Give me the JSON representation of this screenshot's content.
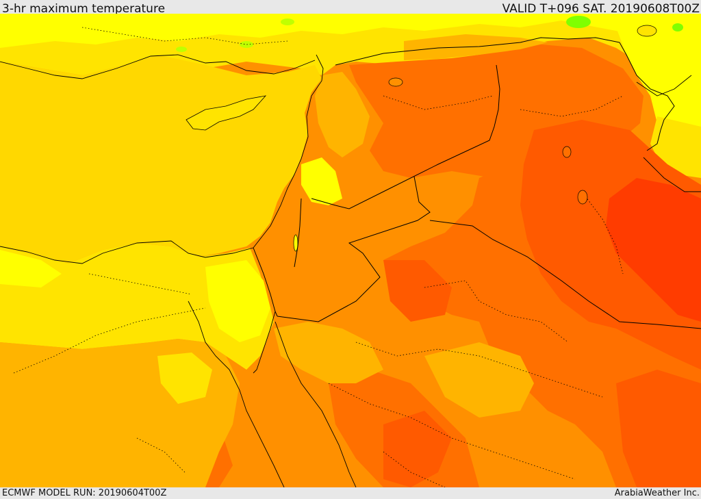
{
  "header": {
    "title": "3-hr maximum temperature",
    "valid": "VALID T+096 SAT. 20190608T00Z"
  },
  "footer": {
    "model_run": "ECMWF MODEL RUN: 20190604T00Z",
    "credit": "ArabiaWeather Inc."
  },
  "colors": {
    "sea": "#ffd800",
    "warm_yellow": "#ffe400",
    "pale_yellow": "#ffff00",
    "light_orange": "#ffb400",
    "orange": "#ff9000",
    "deep_orange": "#ff7000",
    "red_orange": "#ff5a00",
    "hot_red": "#ff3c00",
    "green": "#80ff00",
    "border_line": "#000000"
  }
}
